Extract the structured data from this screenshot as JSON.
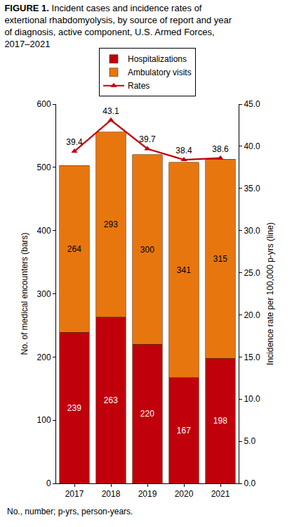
{
  "chart_data": {
    "type": "bar",
    "title": "FIGURE 1. Incident cases and incidence rates of extertional rhabdomyolysis, by source of report and year of diagnosis, active component, U.S. Armed Forces, 2017–2021",
    "note": "No., number; p-yrs, person-years.",
    "categories": [
      "2017",
      "2018",
      "2019",
      "2020",
      "2021"
    ],
    "series": [
      {
        "name": "Hospitalizations",
        "type": "bar",
        "color": "#c0000b",
        "values": [
          239,
          263,
          220,
          167,
          198
        ]
      },
      {
        "name": "Ambulatory visits",
        "type": "bar",
        "color": "#e8760f",
        "values": [
          264,
          293,
          300,
          341,
          315
        ]
      },
      {
        "name": "Rates",
        "type": "line",
        "axis": "y2",
        "color": "#c0000b",
        "marker": "triangle",
        "line_style": "solid",
        "values": [
          39.4,
          43.1,
          39.7,
          38.4,
          38.6
        ]
      }
    ],
    "stacked": true,
    "data_labels": true,
    "legend": "top",
    "grid": false,
    "y_label": "No. of medical encounters (bars)",
    "y2_label": "Incidence rate per 100,000 p-yrs (line)",
    "ylim": [
      0,
      600
    ],
    "yticks": [
      0,
      100,
      200,
      300,
      400,
      500,
      600
    ],
    "y2lim": [
      0,
      45
    ],
    "y2ticks": [
      {
        "value": 0,
        "label": "0.0"
      },
      {
        "value": 5,
        "label": "5.0"
      },
      {
        "value": 10,
        "label": "10.0"
      },
      {
        "value": 15,
        "label": "15.0"
      },
      {
        "value": 20,
        "label": "20.0"
      },
      {
        "value": 25,
        "label": "25.0"
      },
      {
        "value": 30,
        "label": "30.0"
      },
      {
        "value": 35,
        "label": "35.0"
      },
      {
        "value": 40,
        "label": "40.0"
      },
      {
        "value": 45,
        "label": "45.0"
      }
    ]
  }
}
